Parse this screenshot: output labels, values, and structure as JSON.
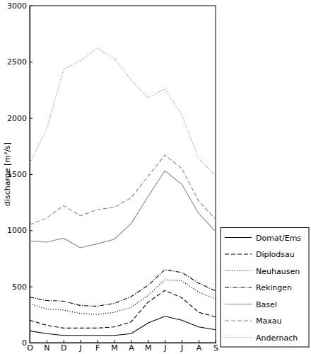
{
  "chart_data": {
    "type": "line",
    "y_label": "discharge [m³/s]",
    "categories": [
      "O",
      "N",
      "D",
      "J",
      "F",
      "M",
      "A",
      "M",
      "J",
      "J",
      "A",
      "S"
    ],
    "ylim": [
      0,
      3000
    ],
    "yticks": [
      0,
      500,
      1000,
      1500,
      2000,
      2500,
      3000
    ],
    "grid": false,
    "legend": "lower right",
    "series": [
      {
        "name": "Domat/Ems",
        "color": "#000000",
        "line_style": "solid",
        "values": [
          105,
          80,
          65,
          65,
          65,
          65,
          80,
          175,
          235,
          200,
          140,
          115
        ]
      },
      {
        "name": "Diplodsau",
        "color": "#000000",
        "line_style": "dashed",
        "values": [
          200,
          155,
          130,
          130,
          130,
          140,
          185,
          360,
          465,
          400,
          270,
          230
        ]
      },
      {
        "name": "Neuhausen",
        "color": "#000000",
        "line_style": "dotted",
        "values": [
          345,
          300,
          290,
          260,
          250,
          270,
          315,
          420,
          560,
          550,
          450,
          390
        ]
      },
      {
        "name": "Rekingen",
        "color": "#000000",
        "line_style": "dashdot",
        "values": [
          405,
          375,
          370,
          330,
          325,
          350,
          410,
          510,
          650,
          625,
          530,
          460
        ]
      },
      {
        "name": "Basel",
        "color": "#888888",
        "line_style": "solid",
        "values": [
          905,
          895,
          930,
          845,
          880,
          920,
          1060,
          1300,
          1530,
          1410,
          1150,
          990
        ]
      },
      {
        "name": "Maxau",
        "color": "#888888",
        "line_style": "dashed",
        "values": [
          1050,
          1110,
          1220,
          1130,
          1185,
          1205,
          1290,
          1480,
          1670,
          1550,
          1260,
          1100
        ]
      },
      {
        "name": "Andernach",
        "color": "#888888",
        "line_style": "dotted",
        "values": [
          1600,
          1900,
          2430,
          2510,
          2620,
          2530,
          2340,
          2180,
          2260,
          2030,
          1640,
          1490
        ]
      }
    ]
  }
}
